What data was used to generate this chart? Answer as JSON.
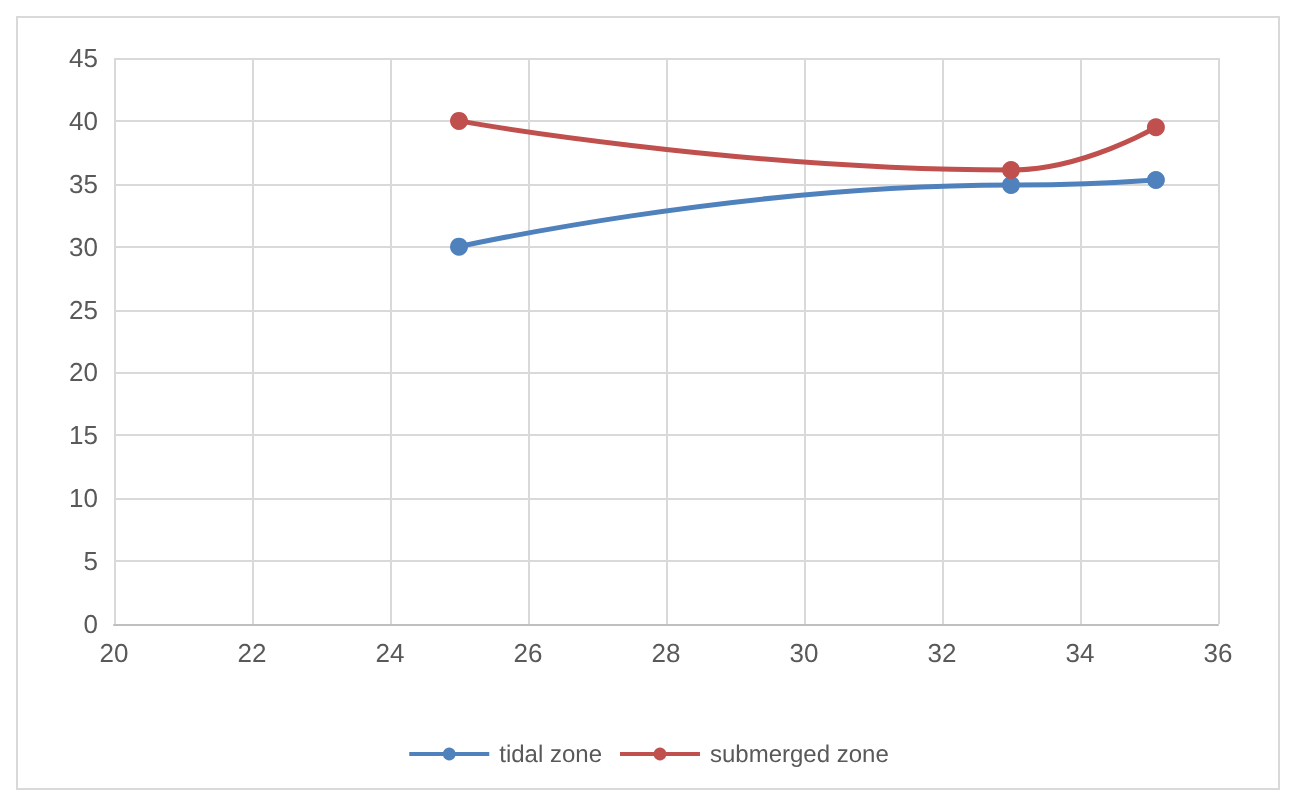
{
  "chart_data": {
    "type": "line",
    "xlim": [
      20,
      36
    ],
    "xticks": [
      20,
      22,
      24,
      26,
      28,
      30,
      32,
      34,
      36
    ],
    "ylim": [
      0,
      45
    ],
    "yticks": [
      0,
      5,
      10,
      15,
      20,
      25,
      30,
      35,
      40,
      45
    ],
    "grid": true,
    "legend": "bottom",
    "marker": "circle",
    "line_style": "solid",
    "series": [
      {
        "name": "tidal zone",
        "color": "#4f81bd",
        "x": [
          25,
          33,
          35.1
        ],
        "values": [
          30,
          34.9,
          35.3
        ]
      },
      {
        "name": "submerged zone",
        "color": "#c0504d",
        "x": [
          25,
          33,
          35.1
        ],
        "values": [
          40,
          36.1,
          39.5
        ]
      }
    ]
  }
}
